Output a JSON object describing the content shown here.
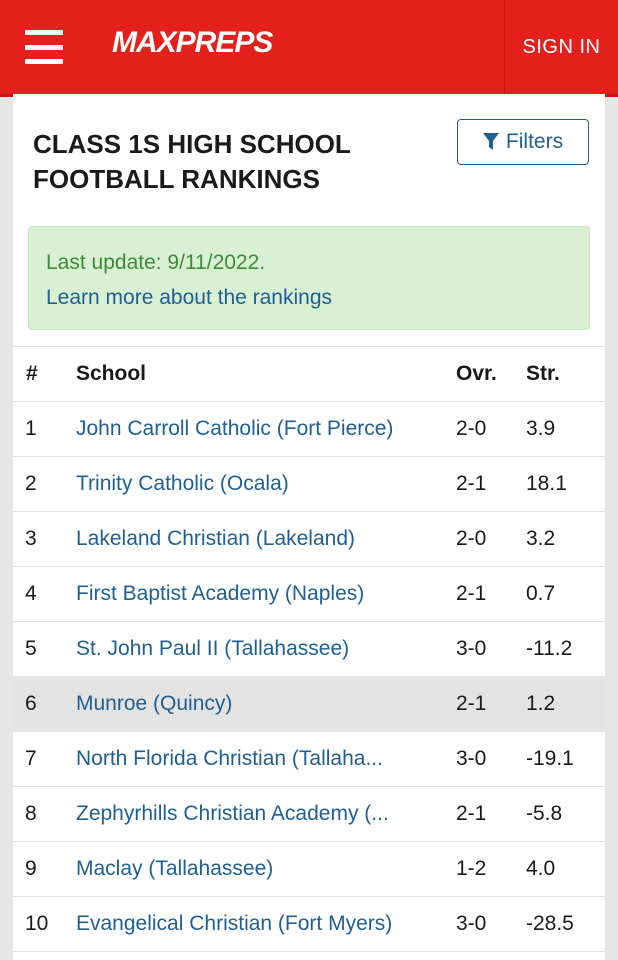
{
  "header": {
    "logo_text": "MAXPREPS",
    "signin_label": "SIGN IN"
  },
  "page": {
    "title": "CLASS 1S HIGH SCHOOL FOOTBALL RANKINGS",
    "filters_label": "Filters",
    "last_update": "Last update: 9/11/2022.",
    "learn_more": "Learn more about the rankings"
  },
  "table": {
    "headers": [
      "#",
      "School",
      "Ovr.",
      "Str."
    ],
    "rows": [
      {
        "rank": "1",
        "school": "John Carroll Catholic (Fort Pierce)",
        "ovr": "2-0",
        "str": "3.9"
      },
      {
        "rank": "2",
        "school": "Trinity Catholic (Ocala)",
        "ovr": "2-1",
        "str": "18.1"
      },
      {
        "rank": "3",
        "school": "Lakeland Christian (Lakeland)",
        "ovr": "2-0",
        "str": "3.2"
      },
      {
        "rank": "4",
        "school": "First Baptist Academy (Naples)",
        "ovr": "2-1",
        "str": "0.7"
      },
      {
        "rank": "5",
        "school": "St. John Paul II (Tallahassee)",
        "ovr": "3-0",
        "str": "-11.2"
      },
      {
        "rank": "6",
        "school": "Munroe (Quincy)",
        "ovr": "2-1",
        "str": "1.2"
      },
      {
        "rank": "7",
        "school": "North Florida Christian (Tallaha...",
        "ovr": "3-0",
        "str": "-19.1"
      },
      {
        "rank": "8",
        "school": "Zephyrhills Christian Academy (...",
        "ovr": "2-1",
        "str": "-5.8"
      },
      {
        "rank": "9",
        "school": "Maclay (Tallahassee)",
        "ovr": "1-2",
        "str": "4.0"
      },
      {
        "rank": "10",
        "school": "Evangelical Christian (Fort Myers)",
        "ovr": "3-0",
        "str": "-28.5"
      }
    ]
  },
  "colors": {
    "brand_red": "#e3201b",
    "link_blue": "#1f5f91",
    "notice_green_bg": "#d9f0d3",
    "notice_green_text": "#3d8a3d"
  }
}
